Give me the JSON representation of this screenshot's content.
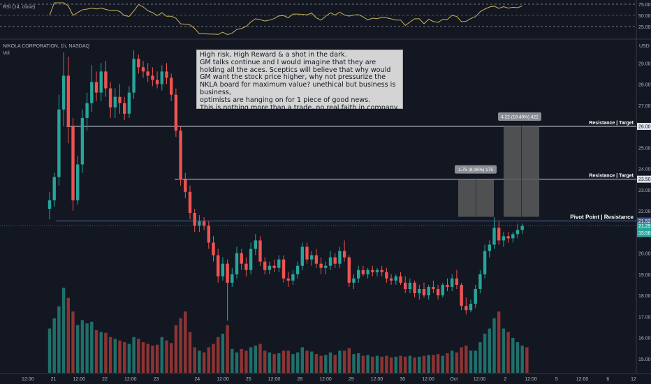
{
  "rsi": {
    "label": "RSI (14, close)",
    "levels": [
      75.0,
      50.0,
      25.0
    ],
    "level_labels": [
      "75.00",
      "50.00",
      "25.00"
    ]
  },
  "main": {
    "title": "NIKOLA CORPORATION, 1h, NASDAQ",
    "vol_label": "Vol",
    "currency": "USD"
  },
  "annotation": {
    "lines": [
      "High risk, High Reward & a shot in the dark.",
      "GM talks continue and I would imagine that they are",
      "holding all the aces. Sceptics will believe that why would",
      "GM want the stock price higher, why not pressurize the",
      "NKLA board for maximum value? unethical but business is business,",
      "optimists are hanging on for 1 piece of good news.",
      "This is nothing more than a trade, no real faith in company."
    ]
  },
  "levels": [
    {
      "label": "Resistance | Target",
      "price": 26.0,
      "price_label": "26.00"
    },
    {
      "label": "Resistance | Target",
      "price": 23.5,
      "price_label": "23.50"
    },
    {
      "label": "Pivot Point | Resistance",
      "price": 21.52,
      "price_label": "21.52"
    }
  ],
  "current": {
    "price_label": "21.29",
    "timer": "33:58",
    "price": 21.29
  },
  "measures": [
    {
      "label": "1.75 (8.06%) 175"
    },
    {
      "label": "4.22 (19.40%) 422"
    }
  ],
  "colors": {
    "up": "#26a69a",
    "down": "#ef5350",
    "vol_up": "#1f6f6a",
    "vol_down": "#8c3434",
    "rsi_line": "#c9b458",
    "background": "#131722"
  },
  "chart_data": {
    "type": "candlestick",
    "title": "NIKOLA CORPORATION, 1h, NASDAQ",
    "ylabel": "USD",
    "ylim": [
      14.3,
      30.0
    ],
    "y_ticks": [
      15.0,
      16.0,
      17.0,
      18.0,
      19.0,
      20.0,
      21.0,
      22.0,
      23.0,
      24.0,
      25.0,
      26.0,
      27.0,
      28.0,
      29.0
    ],
    "y_tick_labels": [
      "15.00",
      "16.00",
      "17.00",
      "18.00",
      "19.00",
      "20.00",
      "21.00",
      "22.00",
      "23.00",
      "24.00",
      "25.00",
      "26.00",
      "27.00",
      "28.00",
      "29.00"
    ],
    "x_tick_labels": [
      "12:00",
      "21",
      "12:00",
      "22",
      "12:00",
      "23",
      "24",
      "12:00",
      "25",
      "12:00",
      "28",
      "12:00",
      "29",
      "12:00",
      "30",
      "12:00",
      "Oct",
      "12:00",
      "2",
      "12:00",
      "5",
      "12:00",
      "6",
      "12"
    ],
    "x_range_bars": [
      0,
      128
    ],
    "x_tick_bars": [
      5,
      10,
      15,
      20,
      25,
      30,
      38,
      43,
      48,
      53,
      58,
      63,
      68,
      73,
      78,
      83,
      88,
      93,
      98,
      103,
      108,
      113,
      118,
      123
    ],
    "candles": [
      {
        "o": 22.1,
        "h": 22.9,
        "l": 21.6,
        "c": 22.5
      },
      {
        "o": 22.5,
        "h": 23.8,
        "l": 22.2,
        "c": 23.6
      },
      {
        "o": 23.6,
        "h": 27.5,
        "l": 23.2,
        "c": 26.8
      },
      {
        "o": 26.8,
        "h": 29.5,
        "l": 26.0,
        "c": 28.4
      },
      {
        "o": 28.4,
        "h": 29.3,
        "l": 25.2,
        "c": 26.0
      },
      {
        "o": 26.0,
        "h": 26.4,
        "l": 22.0,
        "c": 22.5
      },
      {
        "o": 22.5,
        "h": 24.6,
        "l": 22.3,
        "c": 24.2
      },
      {
        "o": 24.2,
        "h": 26.8,
        "l": 23.8,
        "c": 26.4
      },
      {
        "o": 26.4,
        "h": 27.6,
        "l": 25.8,
        "c": 27.1
      },
      {
        "o": 27.1,
        "h": 28.9,
        "l": 26.7,
        "c": 28.1
      },
      {
        "o": 28.1,
        "h": 28.6,
        "l": 27.2,
        "c": 27.6
      },
      {
        "o": 27.6,
        "h": 29.0,
        "l": 27.2,
        "c": 28.6
      },
      {
        "o": 28.6,
        "h": 29.1,
        "l": 27.4,
        "c": 27.8
      },
      {
        "o": 27.8,
        "h": 28.1,
        "l": 26.4,
        "c": 26.9
      },
      {
        "o": 26.9,
        "h": 27.8,
        "l": 26.4,
        "c": 27.4
      },
      {
        "o": 27.4,
        "h": 28.0,
        "l": 26.6,
        "c": 27.1
      },
      {
        "o": 27.1,
        "h": 27.4,
        "l": 26.3,
        "c": 26.6
      },
      {
        "o": 26.6,
        "h": 27.9,
        "l": 26.4,
        "c": 27.6
      },
      {
        "o": 27.6,
        "h": 29.6,
        "l": 27.3,
        "c": 29.2
      },
      {
        "o": 29.2,
        "h": 29.4,
        "l": 28.5,
        "c": 28.8
      },
      {
        "o": 28.8,
        "h": 29.1,
        "l": 28.3,
        "c": 28.6
      },
      {
        "o": 28.6,
        "h": 29.0,
        "l": 28.1,
        "c": 28.4
      },
      {
        "o": 28.4,
        "h": 28.8,
        "l": 27.9,
        "c": 28.2
      },
      {
        "o": 28.2,
        "h": 28.6,
        "l": 27.8,
        "c": 28.0
      },
      {
        "o": 28.0,
        "h": 28.9,
        "l": 27.7,
        "c": 28.6
      },
      {
        "o": 28.6,
        "h": 29.0,
        "l": 28.0,
        "c": 28.3
      },
      {
        "o": 28.3,
        "h": 28.5,
        "l": 27.2,
        "c": 27.5
      },
      {
        "o": 27.5,
        "h": 27.8,
        "l": 25.5,
        "c": 25.8
      },
      {
        "o": 25.8,
        "h": 26.0,
        "l": 23.2,
        "c": 23.5
      },
      {
        "o": 23.5,
        "h": 23.8,
        "l": 22.6,
        "c": 22.9
      },
      {
        "o": 22.9,
        "h": 23.2,
        "l": 21.6,
        "c": 21.9
      },
      {
        "o": 21.9,
        "h": 22.1,
        "l": 21.0,
        "c": 21.3
      },
      {
        "o": 21.3,
        "h": 21.8,
        "l": 21.0,
        "c": 21.5
      },
      {
        "o": 21.5,
        "h": 21.7,
        "l": 21.1,
        "c": 21.3
      },
      {
        "o": 21.3,
        "h": 21.5,
        "l": 20.2,
        "c": 20.5
      },
      {
        "o": 20.5,
        "h": 20.8,
        "l": 19.6,
        "c": 19.9
      },
      {
        "o": 19.9,
        "h": 20.2,
        "l": 18.6,
        "c": 18.9
      },
      {
        "o": 18.9,
        "h": 19.8,
        "l": 18.7,
        "c": 19.5
      },
      {
        "o": 19.5,
        "h": 19.7,
        "l": 16.8,
        "c": 18.6
      },
      {
        "o": 18.6,
        "h": 19.3,
        "l": 18.4,
        "c": 19.0
      },
      {
        "o": 19.0,
        "h": 20.3,
        "l": 18.8,
        "c": 20.0
      },
      {
        "o": 20.0,
        "h": 20.2,
        "l": 19.2,
        "c": 19.5
      },
      {
        "o": 19.5,
        "h": 19.8,
        "l": 18.9,
        "c": 19.2
      },
      {
        "o": 19.2,
        "h": 20.5,
        "l": 19.0,
        "c": 20.2
      },
      {
        "o": 20.2,
        "h": 20.9,
        "l": 19.9,
        "c": 20.6
      },
      {
        "o": 20.6,
        "h": 20.8,
        "l": 19.4,
        "c": 19.6
      },
      {
        "o": 19.6,
        "h": 19.8,
        "l": 19.0,
        "c": 19.2
      },
      {
        "o": 19.2,
        "h": 19.6,
        "l": 19.0,
        "c": 19.4
      },
      {
        "o": 19.4,
        "h": 19.7,
        "l": 19.1,
        "c": 19.3
      },
      {
        "o": 19.3,
        "h": 19.9,
        "l": 19.1,
        "c": 19.7
      },
      {
        "o": 19.7,
        "h": 19.9,
        "l": 18.6,
        "c": 18.8
      },
      {
        "o": 18.8,
        "h": 19.1,
        "l": 18.4,
        "c": 18.7
      },
      {
        "o": 18.7,
        "h": 19.2,
        "l": 18.5,
        "c": 19.0
      },
      {
        "o": 19.0,
        "h": 19.6,
        "l": 18.8,
        "c": 19.4
      },
      {
        "o": 19.4,
        "h": 20.5,
        "l": 19.2,
        "c": 20.3
      },
      {
        "o": 20.3,
        "h": 20.5,
        "l": 19.5,
        "c": 19.7
      },
      {
        "o": 19.7,
        "h": 20.1,
        "l": 19.4,
        "c": 19.9
      },
      {
        "o": 19.9,
        "h": 20.2,
        "l": 19.3,
        "c": 19.5
      },
      {
        "o": 19.5,
        "h": 19.8,
        "l": 19.0,
        "c": 19.3
      },
      {
        "o": 19.3,
        "h": 19.6,
        "l": 19.0,
        "c": 19.4
      },
      {
        "o": 19.4,
        "h": 20.1,
        "l": 19.2,
        "c": 19.8
      },
      {
        "o": 19.8,
        "h": 20.0,
        "l": 19.3,
        "c": 19.5
      },
      {
        "o": 19.5,
        "h": 20.3,
        "l": 19.3,
        "c": 20.1
      },
      {
        "o": 20.1,
        "h": 20.6,
        "l": 19.6,
        "c": 19.8
      },
      {
        "o": 19.8,
        "h": 19.9,
        "l": 18.4,
        "c": 18.6
      },
      {
        "o": 18.6,
        "h": 19.0,
        "l": 18.3,
        "c": 18.8
      },
      {
        "o": 18.8,
        "h": 19.4,
        "l": 18.6,
        "c": 19.2
      },
      {
        "o": 19.2,
        "h": 19.4,
        "l": 18.9,
        "c": 19.0
      },
      {
        "o": 19.0,
        "h": 19.3,
        "l": 18.8,
        "c": 19.2
      },
      {
        "o": 19.2,
        "h": 19.4,
        "l": 18.9,
        "c": 19.1
      },
      {
        "o": 19.1,
        "h": 19.3,
        "l": 18.9,
        "c": 19.2
      },
      {
        "o": 19.2,
        "h": 19.4,
        "l": 18.9,
        "c": 19.1
      },
      {
        "o": 19.1,
        "h": 19.3,
        "l": 18.6,
        "c": 18.8
      },
      {
        "o": 18.8,
        "h": 19.0,
        "l": 18.5,
        "c": 18.7
      },
      {
        "o": 18.7,
        "h": 19.0,
        "l": 18.5,
        "c": 18.9
      },
      {
        "o": 18.9,
        "h": 19.1,
        "l": 18.5,
        "c": 18.6
      },
      {
        "o": 18.6,
        "h": 18.9,
        "l": 18.1,
        "c": 18.3
      },
      {
        "o": 18.3,
        "h": 18.8,
        "l": 18.1,
        "c": 18.6
      },
      {
        "o": 18.6,
        "h": 18.7,
        "l": 17.9,
        "c": 18.1
      },
      {
        "o": 18.1,
        "h": 18.5,
        "l": 17.8,
        "c": 18.3
      },
      {
        "o": 18.3,
        "h": 18.6,
        "l": 17.9,
        "c": 18.0
      },
      {
        "o": 18.0,
        "h": 18.5,
        "l": 17.8,
        "c": 18.4
      },
      {
        "o": 18.4,
        "h": 18.7,
        "l": 18.1,
        "c": 18.3
      },
      {
        "o": 18.3,
        "h": 18.5,
        "l": 17.8,
        "c": 18.0
      },
      {
        "o": 18.0,
        "h": 18.6,
        "l": 17.9,
        "c": 18.5
      },
      {
        "o": 18.5,
        "h": 18.8,
        "l": 18.2,
        "c": 18.4
      },
      {
        "o": 18.4,
        "h": 19.0,
        "l": 18.2,
        "c": 18.8
      },
      {
        "o": 18.8,
        "h": 19.2,
        "l": 18.3,
        "c": 18.5
      },
      {
        "o": 18.5,
        "h": 18.6,
        "l": 17.3,
        "c": 17.5
      },
      {
        "o": 17.5,
        "h": 17.9,
        "l": 17.1,
        "c": 17.3
      },
      {
        "o": 17.3,
        "h": 17.8,
        "l": 17.2,
        "c": 17.6
      },
      {
        "o": 17.6,
        "h": 18.5,
        "l": 17.4,
        "c": 18.3
      },
      {
        "o": 18.3,
        "h": 19.2,
        "l": 18.1,
        "c": 19.0
      },
      {
        "o": 19.0,
        "h": 20.4,
        "l": 18.8,
        "c": 20.1
      },
      {
        "o": 20.1,
        "h": 20.6,
        "l": 19.8,
        "c": 20.4
      },
      {
        "o": 20.4,
        "h": 21.7,
        "l": 20.2,
        "c": 21.2
      },
      {
        "o": 21.2,
        "h": 21.5,
        "l": 20.4,
        "c": 20.6
      },
      {
        "o": 20.6,
        "h": 21.0,
        "l": 20.3,
        "c": 20.8
      },
      {
        "o": 20.8,
        "h": 21.0,
        "l": 20.5,
        "c": 20.7
      },
      {
        "o": 20.7,
        "h": 21.0,
        "l": 20.5,
        "c": 20.9
      },
      {
        "o": 20.9,
        "h": 21.4,
        "l": 20.7,
        "c": 21.1
      },
      {
        "o": 21.1,
        "h": 21.4,
        "l": 20.9,
        "c": 21.29
      }
    ],
    "volumes": [
      520,
      640,
      780,
      1000,
      880,
      720,
      560,
      620,
      580,
      600,
      500,
      480,
      470,
      420,
      400,
      380,
      360,
      340,
      420,
      400,
      360,
      340,
      320,
      330,
      420,
      380,
      350,
      560,
      640,
      720,
      480,
      300,
      260,
      240,
      300,
      340,
      420,
      460,
      560,
      280,
      240,
      280,
      260,
      300,
      320,
      340,
      260,
      240,
      220,
      230,
      260,
      260,
      220,
      240,
      300,
      260,
      250,
      220,
      200,
      210,
      240,
      210,
      260,
      260,
      290,
      220,
      230,
      200,
      210,
      190,
      200,
      190,
      200,
      180,
      190,
      200,
      190,
      200,
      180,
      190,
      200,
      210,
      210,
      220,
      200,
      230,
      260,
      240,
      300,
      320,
      260,
      260,
      360,
      460,
      520,
      640,
      720,
      520,
      480,
      410,
      360,
      320,
      300
    ]
  }
}
